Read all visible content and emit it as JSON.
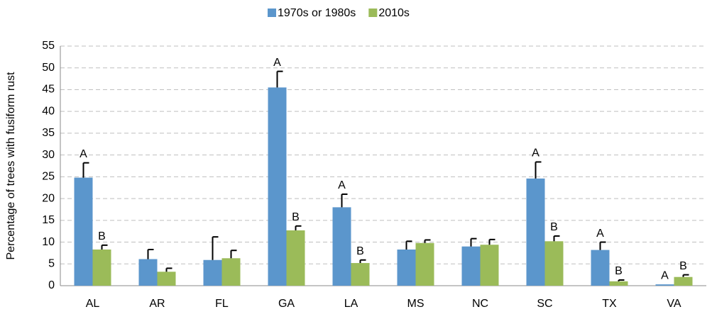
{
  "chart_data": {
    "type": "bar",
    "y_label": "Percentage of trees with fusiform rust",
    "categories": [
      "AL",
      "AR",
      "FL",
      "GA",
      "LA",
      "MS",
      "NC",
      "SC",
      "TX",
      "VA"
    ],
    "series": [
      {
        "name": "1970s or 1980s",
        "color": "#5b96cc",
        "values": [
          24.8,
          6.1,
          5.9,
          45.5,
          18.0,
          8.3,
          9.0,
          24.6,
          8.2,
          0.3
        ],
        "errors": [
          3.4,
          2.2,
          5.3,
          3.7,
          3.0,
          1.9,
          1.8,
          3.8,
          1.8,
          0
        ],
        "letters": [
          "A",
          null,
          null,
          "A",
          "A",
          null,
          null,
          "A",
          "A",
          "A"
        ]
      },
      {
        "name": "2010s",
        "color": "#9bbb59",
        "values": [
          8.3,
          3.2,
          6.3,
          12.7,
          5.2,
          9.8,
          9.4,
          10.2,
          1.0,
          2.0
        ],
        "errors": [
          1.0,
          0.8,
          1.8,
          1.0,
          0.7,
          0.7,
          1.2,
          1.2,
          0.3,
          0.5
        ],
        "letters": [
          "B",
          null,
          null,
          "B",
          "B",
          null,
          null,
          "B",
          "B",
          "B"
        ]
      }
    ],
    "ylim": [
      0,
      55
    ],
    "yticks": [
      0,
      5,
      10,
      15,
      20,
      25,
      30,
      35,
      40,
      45,
      50,
      55
    ],
    "grid": true,
    "legend": "top"
  }
}
